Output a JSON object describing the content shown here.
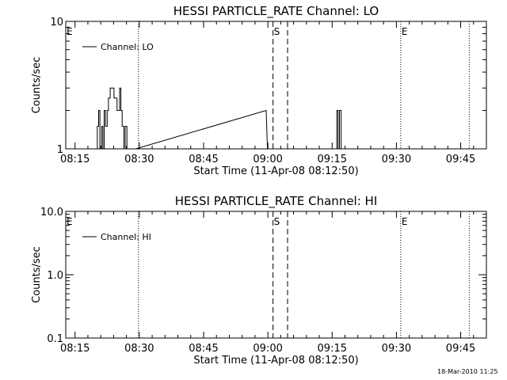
{
  "chart_data": [
    {
      "type": "line",
      "title": "HESSI PARTICLE_RATE Channel: LO",
      "xlabel": "Start Time (11-Apr-08 08:12:50)",
      "ylabel": "Counts/sec",
      "x_tick_labels": [
        "08:15",
        "08:30",
        "08:45",
        "09:00",
        "09:15",
        "09:30",
        "09:45"
      ],
      "x_tick_minutes": [
        15,
        30,
        45,
        60,
        75,
        90,
        105
      ],
      "xlim_minutes": [
        12.833,
        111
      ],
      "y_scale": "log",
      "ylim": [
        1,
        10
      ],
      "y_tick_values": [
        1,
        10
      ],
      "y_tick_labels": [
        "1",
        "10"
      ],
      "legend": {
        "label": "Channel: LO",
        "placement": "top-left"
      },
      "markers": [
        {
          "label": "E",
          "minute": 12.833,
          "style": "dotted"
        },
        {
          "label": "",
          "minute": 29.8,
          "style": "dotted"
        },
        {
          "label": "S",
          "minute": 61.2,
          "style": "dashed"
        },
        {
          "label": "",
          "minute": 64.6,
          "style": "dashed"
        },
        {
          "label": "E",
          "minute": 91.0,
          "style": "dotted"
        },
        {
          "label": "",
          "minute": 107.0,
          "style": "dotted"
        }
      ],
      "series": [
        {
          "name": "Channel: LO",
          "x_minutes": [
            15.3,
            20.2,
            20.2,
            20.5,
            20.5,
            20.8,
            20.8,
            21.2,
            21.2,
            21.5,
            21.5,
            21.8,
            21.8,
            22.1,
            22.1,
            22.5,
            22.5,
            22.8,
            22.8,
            23.2,
            23.2,
            23.5,
            23.5,
            24.1,
            24.1,
            24.8,
            24.8,
            25.4,
            25.4,
            25.7,
            25.7,
            26.0,
            26.0,
            26.4,
            26.4,
            26.7,
            26.7,
            27.1,
            27.1,
            27.4,
            27.4,
            29.2,
            59.6,
            59.6,
            59.9,
            59.9,
            76.1,
            76.1,
            76.4,
            76.4,
            76.7,
            76.7,
            77.1,
            77.1,
            111.0
          ],
          "values": [
            1,
            1,
            1.5,
            1.5,
            2,
            2,
            1,
            1,
            1.5,
            1.5,
            1,
            1,
            2,
            2,
            1.5,
            1.5,
            2,
            2,
            2.5,
            2.5,
            3,
            3,
            3,
            3,
            2.5,
            2.5,
            2,
            2,
            3,
            3,
            2,
            2,
            1.5,
            1.5,
            1,
            1,
            1.5,
            1.5,
            1,
            1,
            1,
            1,
            2,
            2,
            1,
            1,
            1,
            2,
            2,
            1,
            1,
            2,
            2,
            1,
            1
          ]
        }
      ]
    },
    {
      "type": "line",
      "title": "HESSI PARTICLE_RATE Channel: HI",
      "xlabel": "Start Time (11-Apr-08 08:12:50)",
      "ylabel": "Counts/sec",
      "x_tick_labels": [
        "08:15",
        "08:30",
        "08:45",
        "09:00",
        "09:15",
        "09:30",
        "09:45"
      ],
      "x_tick_minutes": [
        15,
        30,
        45,
        60,
        75,
        90,
        105
      ],
      "xlim_minutes": [
        12.833,
        111
      ],
      "y_scale": "log",
      "ylim": [
        0.1,
        10
      ],
      "y_tick_values": [
        0.1,
        1,
        10
      ],
      "y_tick_labels": [
        "0.1",
        "1.0",
        "10.0"
      ],
      "legend": {
        "label": "Channel: HI",
        "placement": "top-left"
      },
      "markers": [
        {
          "label": "E",
          "minute": 12.833,
          "style": "dotted"
        },
        {
          "label": "",
          "minute": 29.8,
          "style": "dotted"
        },
        {
          "label": "S",
          "minute": 61.2,
          "style": "dashed"
        },
        {
          "label": "",
          "minute": 64.6,
          "style": "dashed"
        },
        {
          "label": "E",
          "minute": 91.0,
          "style": "dotted"
        },
        {
          "label": "",
          "minute": 107.0,
          "style": "dotted"
        }
      ],
      "series": [
        {
          "name": "Channel: HI",
          "x_minutes": [],
          "values": []
        }
      ]
    }
  ],
  "footer": {
    "timestamp": "18-Mar-2010 11:25"
  }
}
